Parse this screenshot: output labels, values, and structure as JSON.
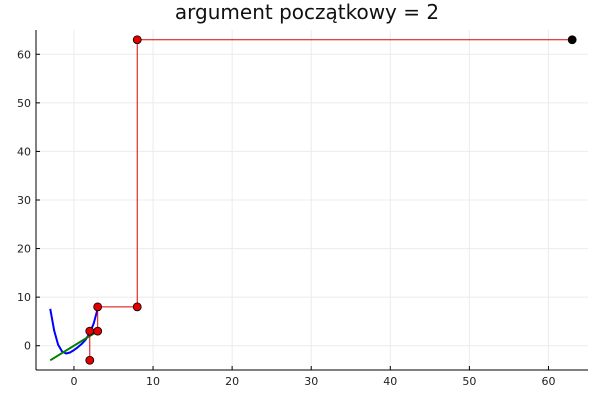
{
  "chart_data": {
    "type": "line",
    "title": "argument początkowy = 2",
    "xlabel": "",
    "ylabel": "",
    "xlim": [
      -4.8,
      65
    ],
    "ylim": [
      -5,
      65
    ],
    "grid": true,
    "legend": "none",
    "x_ticks": [
      0,
      10,
      20,
      30,
      40,
      50,
      60
    ],
    "y_ticks": [
      0,
      10,
      20,
      30,
      40,
      50,
      60
    ],
    "x_tick_labels": [
      "0",
      "10",
      "20",
      "30",
      "40",
      "50",
      "60"
    ],
    "y_tick_labels": [
      "0",
      "10",
      "20",
      "30",
      "40",
      "50",
      "60"
    ],
    "series": [
      {
        "kind": "curve",
        "color": "#0000ff",
        "points": [
          [
            -3,
            7.6
          ],
          [
            -2.5,
            3.1
          ],
          [
            -2,
            0.2
          ],
          [
            -1.5,
            -1.2
          ],
          [
            -1,
            -1.6
          ],
          [
            -0.5,
            -1.4
          ],
          [
            0,
            -0.9
          ],
          [
            0.5,
            -0.3
          ],
          [
            1,
            0.4
          ],
          [
            1.5,
            1.3
          ],
          [
            2,
            2.6
          ],
          [
            2.5,
            4.6
          ],
          [
            3,
            7.6
          ]
        ]
      },
      {
        "kind": "line",
        "color": "#008000",
        "points": [
          [
            -3,
            -3
          ],
          [
            3,
            3
          ]
        ]
      },
      {
        "kind": "path",
        "color": "#e00000",
        "points": [
          [
            2,
            -3
          ],
          [
            2,
            3
          ],
          [
            3,
            3
          ],
          [
            3,
            8
          ],
          [
            8,
            8
          ],
          [
            8,
            63
          ],
          [
            63,
            63
          ]
        ]
      },
      {
        "kind": "markers",
        "color": "#e00000",
        "points": [
          [
            2,
            -3
          ],
          [
            2,
            3
          ],
          [
            3,
            3
          ],
          [
            3,
            8
          ],
          [
            8,
            8
          ],
          [
            8,
            63
          ]
        ]
      },
      {
        "kind": "markers",
        "color": "#000000",
        "points": [
          [
            63,
            63
          ]
        ]
      }
    ]
  }
}
